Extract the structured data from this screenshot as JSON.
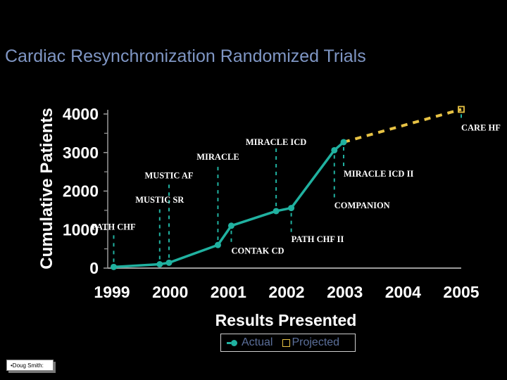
{
  "slide": {
    "title": "Cardiac Resynchronization Randomized Trials",
    "note": "•Doug Smith:"
  },
  "colors": {
    "background": "#000000",
    "title": "#7f96c4",
    "actual": "#20b1a0",
    "projected": "#e7c244",
    "text": "#ffffff",
    "legend_text": "#5b6f9a"
  },
  "legend": {
    "position": "bottom-center",
    "actual_label": "Actual",
    "projected_label": "Projected"
  },
  "chart_data": {
    "type": "line",
    "xlabel": "Results Presented",
    "ylabel": "Cumulative Patients",
    "xlim": [
      1999,
      2005
    ],
    "ylim": [
      0,
      4000
    ],
    "x_ticks": [
      "1999",
      "2000",
      "2001",
      "2002",
      "2003",
      "2004",
      "2005"
    ],
    "y_ticks": [
      "0",
      "1000",
      "2000",
      "3000",
      "4000"
    ],
    "grid": false,
    "series": [
      {
        "name": "Actual",
        "style": "solid",
        "points": [
          {
            "x": 1999.03,
            "y": 30
          },
          {
            "x": 1999.82,
            "y": 100
          },
          {
            "x": 1999.98,
            "y": 140
          },
          {
            "x": 2000.82,
            "y": 600
          },
          {
            "x": 2001.05,
            "y": 1100
          },
          {
            "x": 2001.82,
            "y": 1480
          },
          {
            "x": 2002.08,
            "y": 1560
          },
          {
            "x": 2002.82,
            "y": 3060
          },
          {
            "x": 2002.98,
            "y": 3270
          }
        ]
      },
      {
        "name": "Projected",
        "style": "dashed",
        "points": [
          {
            "x": 2002.98,
            "y": 3270
          },
          {
            "x": 2005.0,
            "y": 4120
          }
        ]
      }
    ],
    "annotations": [
      {
        "label": "PATH CHF",
        "x": 1999.03,
        "y": 30,
        "placement": "above",
        "label_y": 1000
      },
      {
        "label": "MUSTIC SR",
        "x": 1999.82,
        "y": 100,
        "placement": "above",
        "label_y": 1700
      },
      {
        "label": "MUSTIC AF",
        "x": 1999.98,
        "y": 140,
        "placement": "above",
        "label_y": 2330
      },
      {
        "label": "MIRACLE",
        "x": 2000.82,
        "y": 600,
        "placement": "above",
        "label_y": 2810
      },
      {
        "label": "CONTAK CD",
        "x": 2001.05,
        "y": 1100,
        "placement": "below",
        "label_y": 370
      },
      {
        "label": "MIRACLE ICD",
        "x": 2001.82,
        "y": 1480,
        "placement": "above",
        "label_y": 3200
      },
      {
        "label": "PATH CHF II",
        "x": 2002.08,
        "y": 1560,
        "placement": "below",
        "label_y": 680
      },
      {
        "label": "COMPANION",
        "x": 2002.82,
        "y": 3060,
        "placement": "below",
        "label_y": 1550
      },
      {
        "label": "MIRACLE ICD II",
        "x": 2002.98,
        "y": 3270,
        "placement": "below",
        "label_y": 2370
      },
      {
        "label": "CARE HF",
        "x": 2005.0,
        "y": 4120,
        "placement": "below",
        "label_y": 3570
      }
    ]
  }
}
